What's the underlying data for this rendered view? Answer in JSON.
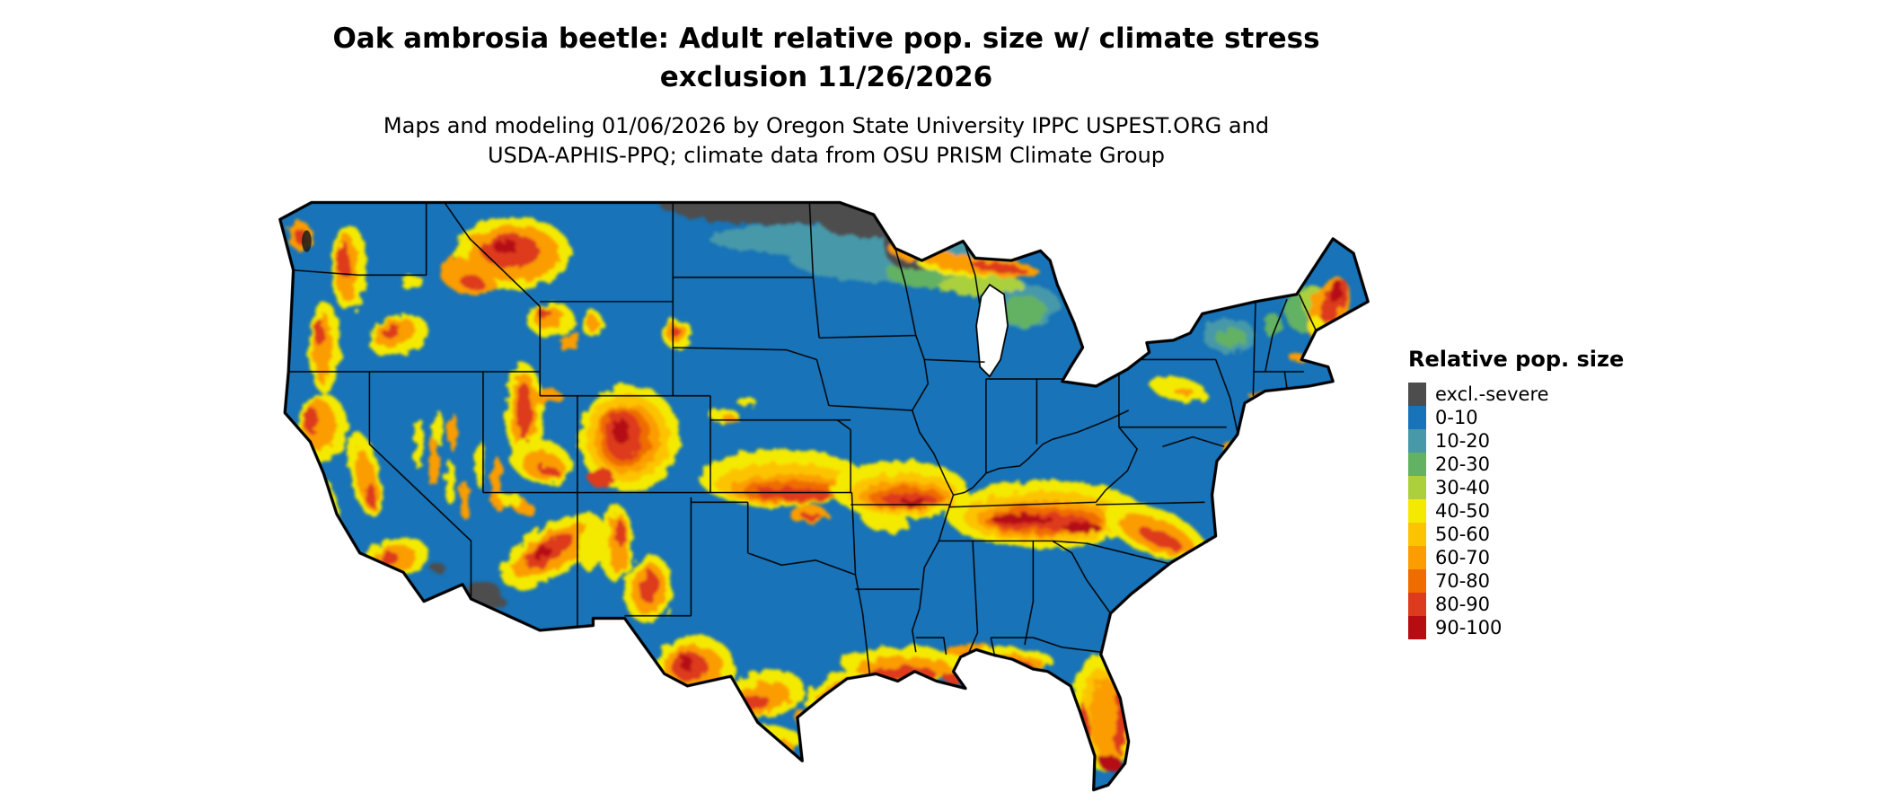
{
  "header": {
    "title_line1": "Oak ambrosia beetle: Adult relative pop. size w/ climate stress",
    "title_line2": "exclusion 11/26/2026",
    "subtitle_line1": "Maps and modeling 01/06/2026 by Oregon State University IPPC USPEST.ORG and",
    "subtitle_line2": "USDA-APHIS-PPQ; climate data from OSU PRISM Climate Group"
  },
  "legend": {
    "title": "Relative pop. size",
    "items": [
      {
        "label": "excl.-severe",
        "color": "#4d4d4d"
      },
      {
        "label": "0-10",
        "color": "#1873b8"
      },
      {
        "label": "10-20",
        "color": "#4799a9"
      },
      {
        "label": "20-30",
        "color": "#63b163"
      },
      {
        "label": "30-40",
        "color": "#abd03c"
      },
      {
        "label": "40-50",
        "color": "#f4ea00"
      },
      {
        "label": "50-60",
        "color": "#fcc400"
      },
      {
        "label": "60-70",
        "color": "#fb9d00"
      },
      {
        "label": "70-80",
        "color": "#ef6c00"
      },
      {
        "label": "80-90",
        "color": "#dd3b1e"
      },
      {
        "label": "90-100",
        "color": "#b50d12"
      }
    ]
  },
  "map": {
    "region": "Contiguous United States",
    "base_color": "#1873b8"
  }
}
